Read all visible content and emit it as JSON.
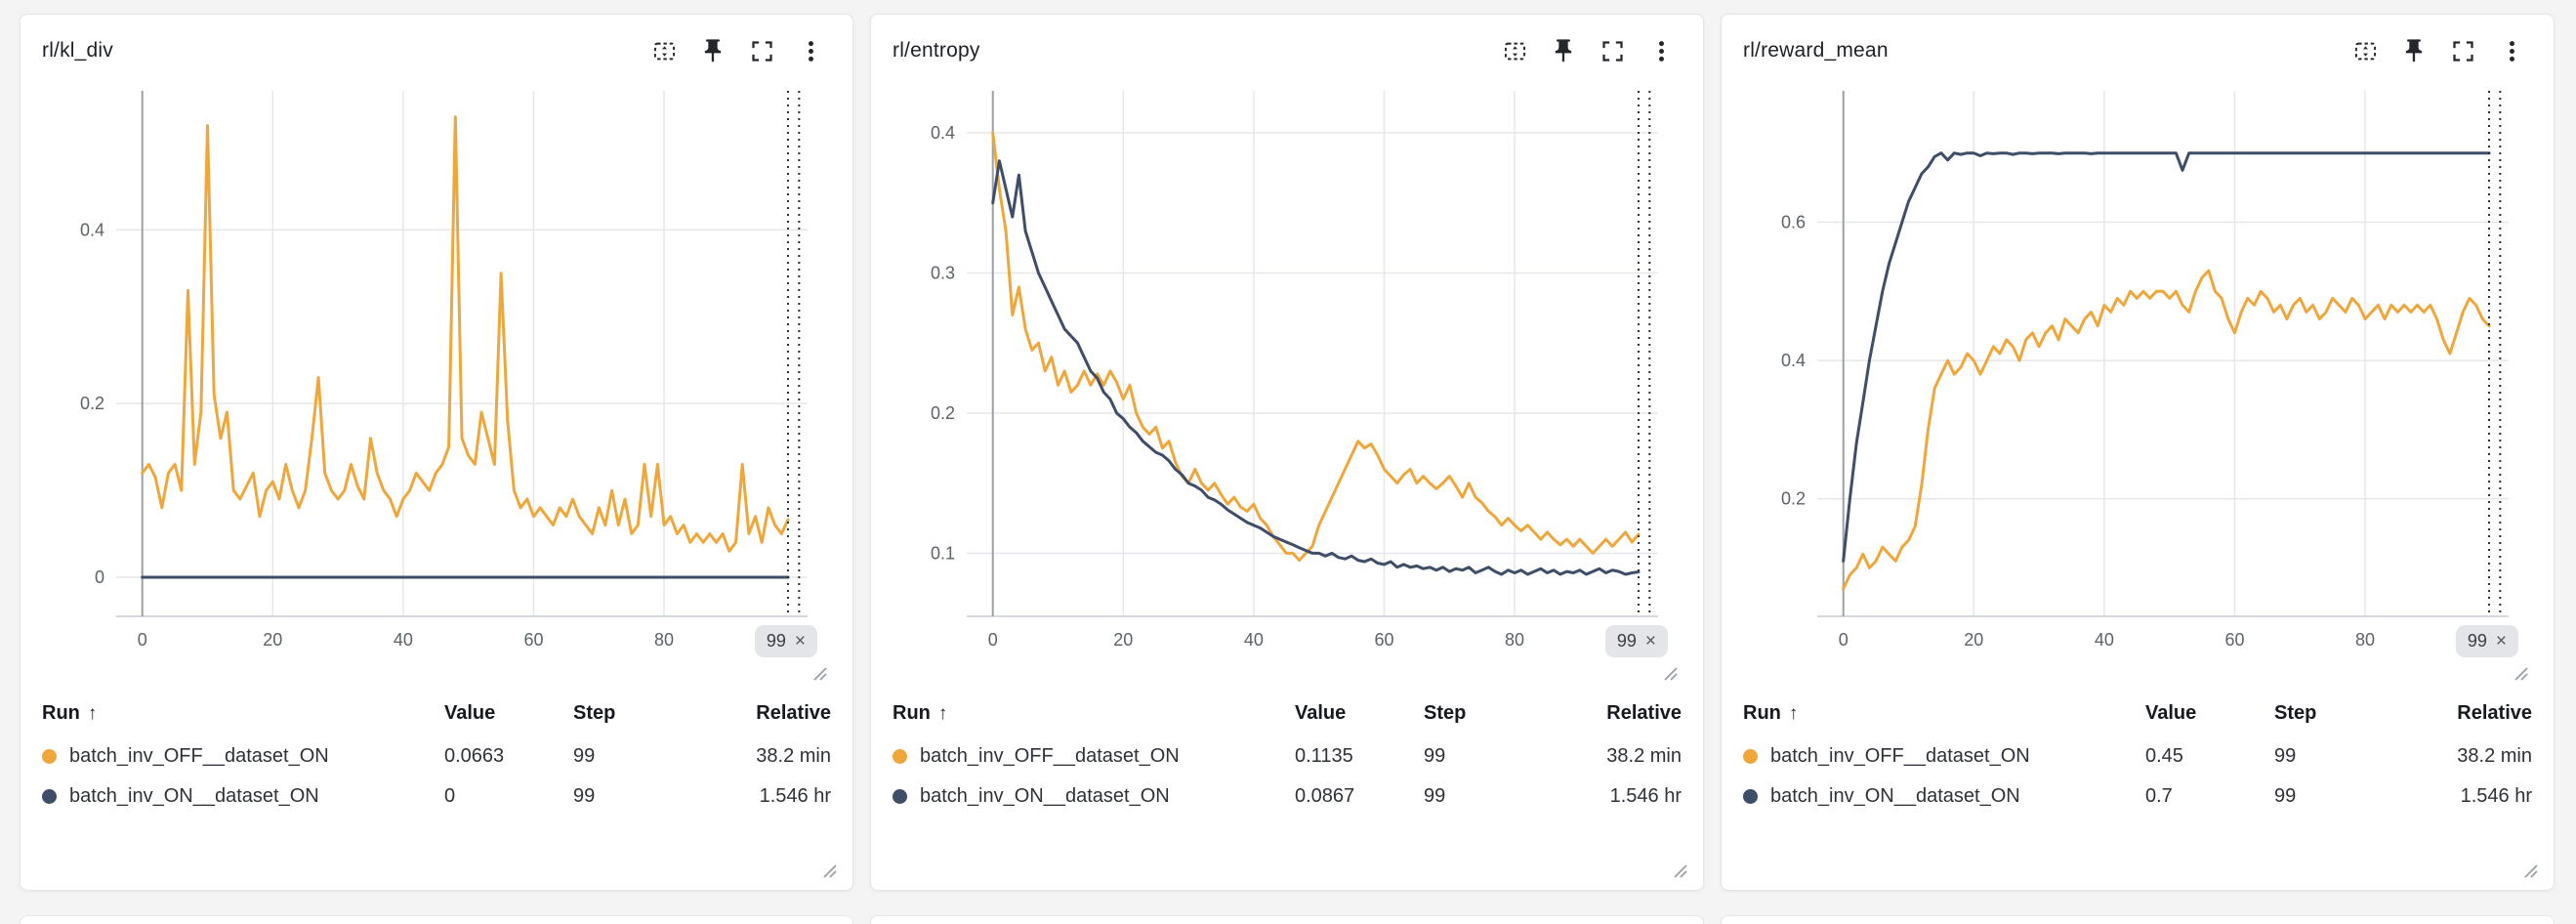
{
  "app": {
    "background": "#f4f4f5",
    "panel_background": "#ffffff"
  },
  "colors": {
    "run_off": "#EFA73C",
    "run_on": "#3E4D68",
    "grid": "#e5e7ea",
    "cursor": "#2b2e33"
  },
  "legend_headers": {
    "run": "Run",
    "sort": "↑",
    "value": "Value",
    "step": "Step",
    "relative": "Relative"
  },
  "panel_actions": [
    {
      "name": "zoom-region-icon"
    },
    {
      "name": "pin-icon"
    },
    {
      "name": "fullscreen-icon"
    },
    {
      "name": "kebab-menu-icon"
    }
  ],
  "panels": [
    {
      "title": "rl/kl_div",
      "badge": {
        "step": "99",
        "close": "×"
      },
      "legend": {
        "rows": [
          {
            "name": "batch_inv_OFF__dataset_ON",
            "value": "0.0663",
            "step": "99",
            "relative": "38.2 min",
            "color": "#EFA73C"
          },
          {
            "name": "batch_inv_ON__dataset_ON",
            "value": "0",
            "step": "99",
            "relative": "1.546 hr",
            "color": "#3E4D68"
          }
        ]
      }
    },
    {
      "title": "rl/entropy",
      "badge": {
        "step": "99",
        "close": "×"
      },
      "legend": {
        "rows": [
          {
            "name": "batch_inv_OFF__dataset_ON",
            "value": "0.1135",
            "step": "99",
            "relative": "38.2 min",
            "color": "#EFA73C"
          },
          {
            "name": "batch_inv_ON__dataset_ON",
            "value": "0.0867",
            "step": "99",
            "relative": "1.546 hr",
            "color": "#3E4D68"
          }
        ]
      }
    },
    {
      "title": "rl/reward_mean",
      "badge": {
        "step": "99",
        "close": "×"
      },
      "legend": {
        "rows": [
          {
            "name": "batch_inv_OFF__dataset_ON",
            "value": "0.45",
            "step": "99",
            "relative": "38.2 min",
            "color": "#EFA73C"
          },
          {
            "name": "batch_inv_ON__dataset_ON",
            "value": "0.7",
            "step": "99",
            "relative": "1.546 hr",
            "color": "#3E4D68"
          }
        ]
      }
    }
  ],
  "chart_data": [
    {
      "type": "line",
      "title": "rl/kl_div",
      "xlabel": "",
      "ylabel": "",
      "xlim": [
        -4,
        102
      ],
      "ylim": [
        -0.045,
        0.56
      ],
      "xticks": [
        0,
        20,
        40,
        60,
        80
      ],
      "yticks": [
        0,
        0.2,
        0.4
      ],
      "x_max_step": 99,
      "cursor_lines": [
        99,
        100.7
      ],
      "grid": true,
      "legend_position": "below",
      "series": [
        {
          "name": "batch_inv_OFF__dataset_ON",
          "color": "#EFA73C",
          "y": [
            0.12,
            0.13,
            0.115,
            0.08,
            0.12,
            0.13,
            0.1,
            0.33,
            0.13,
            0.19,
            0.52,
            0.21,
            0.16,
            0.19,
            0.1,
            0.09,
            0.105,
            0.12,
            0.07,
            0.1,
            0.11,
            0.09,
            0.13,
            0.1,
            0.08,
            0.1,
            0.16,
            0.23,
            0.12,
            0.1,
            0.09,
            0.1,
            0.13,
            0.105,
            0.09,
            0.16,
            0.12,
            0.1,
            0.09,
            0.07,
            0.09,
            0.1,
            0.12,
            0.11,
            0.1,
            0.12,
            0.13,
            0.15,
            0.53,
            0.16,
            0.14,
            0.13,
            0.19,
            0.16,
            0.13,
            0.35,
            0.18,
            0.1,
            0.08,
            0.09,
            0.07,
            0.08,
            0.07,
            0.06,
            0.08,
            0.07,
            0.09,
            0.07,
            0.06,
            0.05,
            0.08,
            0.06,
            0.1,
            0.06,
            0.09,
            0.05,
            0.06,
            0.13,
            0.07,
            0.13,
            0.06,
            0.07,
            0.05,
            0.06,
            0.04,
            0.05,
            0.04,
            0.05,
            0.04,
            0.05,
            0.03,
            0.04,
            0.13,
            0.05,
            0.07,
            0.04,
            0.08,
            0.06,
            0.05,
            0.0663
          ]
        },
        {
          "name": "batch_inv_ON__dataset_ON",
          "color": "#3E4D68",
          "y": [
            0,
            0
          ]
        }
      ]
    },
    {
      "type": "line",
      "title": "rl/entropy",
      "xlabel": "",
      "ylabel": "",
      "xlim": [
        -4,
        102
      ],
      "ylim": [
        0.055,
        0.43
      ],
      "xticks": [
        0,
        20,
        40,
        60,
        80
      ],
      "yticks": [
        0.1,
        0.2,
        0.3,
        0.4
      ],
      "x_max_step": 99,
      "cursor_lines": [
        99,
        100.7
      ],
      "grid": true,
      "legend_position": "below",
      "series": [
        {
          "name": "batch_inv_OFF__dataset_ON",
          "color": "#EFA73C",
          "y": [
            0.4,
            0.36,
            0.33,
            0.27,
            0.29,
            0.26,
            0.245,
            0.25,
            0.23,
            0.24,
            0.22,
            0.23,
            0.215,
            0.22,
            0.23,
            0.22,
            0.228,
            0.22,
            0.23,
            0.222,
            0.21,
            0.22,
            0.2,
            0.19,
            0.185,
            0.19,
            0.175,
            0.18,
            0.165,
            0.155,
            0.15,
            0.16,
            0.15,
            0.145,
            0.15,
            0.142,
            0.135,
            0.14,
            0.133,
            0.13,
            0.135,
            0.125,
            0.12,
            0.112,
            0.106,
            0.1,
            0.1,
            0.095,
            0.1,
            0.105,
            0.12,
            0.13,
            0.14,
            0.15,
            0.16,
            0.17,
            0.18,
            0.175,
            0.178,
            0.17,
            0.16,
            0.155,
            0.15,
            0.156,
            0.16,
            0.15,
            0.155,
            0.15,
            0.146,
            0.15,
            0.155,
            0.148,
            0.14,
            0.15,
            0.14,
            0.136,
            0.13,
            0.126,
            0.12,
            0.125,
            0.12,
            0.116,
            0.12,
            0.115,
            0.11,
            0.115,
            0.11,
            0.106,
            0.11,
            0.105,
            0.11,
            0.105,
            0.1,
            0.105,
            0.11,
            0.105,
            0.11,
            0.115,
            0.108,
            0.1135
          ]
        },
        {
          "name": "batch_inv_ON__dataset_ON",
          "color": "#3E4D68",
          "y": [
            0.35,
            0.38,
            0.36,
            0.34,
            0.37,
            0.33,
            0.315,
            0.3,
            0.29,
            0.28,
            0.27,
            0.26,
            0.255,
            0.25,
            0.24,
            0.23,
            0.225,
            0.215,
            0.21,
            0.2,
            0.196,
            0.19,
            0.186,
            0.18,
            0.176,
            0.172,
            0.17,
            0.166,
            0.16,
            0.156,
            0.15,
            0.148,
            0.145,
            0.14,
            0.138,
            0.135,
            0.131,
            0.128,
            0.125,
            0.122,
            0.12,
            0.118,
            0.115,
            0.112,
            0.11,
            0.108,
            0.106,
            0.104,
            0.102,
            0.1,
            0.1,
            0.098,
            0.1,
            0.097,
            0.096,
            0.098,
            0.095,
            0.094,
            0.096,
            0.093,
            0.092,
            0.094,
            0.09,
            0.092,
            0.09,
            0.091,
            0.089,
            0.09,
            0.088,
            0.09,
            0.087,
            0.089,
            0.088,
            0.09,
            0.086,
            0.088,
            0.09,
            0.087,
            0.085,
            0.088,
            0.086,
            0.088,
            0.085,
            0.087,
            0.089,
            0.086,
            0.088,
            0.085,
            0.087,
            0.086,
            0.088,
            0.085,
            0.087,
            0.089,
            0.086,
            0.088,
            0.087,
            0.085,
            0.086,
            0.0867
          ]
        }
      ]
    },
    {
      "type": "line",
      "title": "rl/reward_mean",
      "xlabel": "",
      "ylabel": "",
      "xlim": [
        -4,
        102
      ],
      "ylim": [
        0.03,
        0.79
      ],
      "xticks": [
        0,
        20,
        40,
        60,
        80
      ],
      "yticks": [
        0.2,
        0.4,
        0.6
      ],
      "x_max_step": 99,
      "cursor_lines": [
        99,
        100.7
      ],
      "grid": true,
      "legend_position": "below",
      "series": [
        {
          "name": "batch_inv_OFF__dataset_ON",
          "color": "#EFA73C",
          "y": [
            0.07,
            0.09,
            0.1,
            0.12,
            0.1,
            0.11,
            0.13,
            0.12,
            0.11,
            0.13,
            0.14,
            0.16,
            0.22,
            0.3,
            0.36,
            0.38,
            0.4,
            0.38,
            0.39,
            0.41,
            0.4,
            0.38,
            0.4,
            0.42,
            0.41,
            0.43,
            0.42,
            0.4,
            0.43,
            0.44,
            0.42,
            0.44,
            0.45,
            0.43,
            0.46,
            0.45,
            0.44,
            0.46,
            0.47,
            0.45,
            0.48,
            0.47,
            0.49,
            0.48,
            0.5,
            0.49,
            0.5,
            0.49,
            0.5,
            0.5,
            0.49,
            0.5,
            0.48,
            0.47,
            0.5,
            0.52,
            0.53,
            0.5,
            0.49,
            0.46,
            0.44,
            0.47,
            0.49,
            0.48,
            0.5,
            0.49,
            0.47,
            0.48,
            0.46,
            0.48,
            0.49,
            0.47,
            0.48,
            0.46,
            0.47,
            0.49,
            0.48,
            0.47,
            0.49,
            0.48,
            0.46,
            0.47,
            0.48,
            0.46,
            0.48,
            0.47,
            0.48,
            0.47,
            0.48,
            0.47,
            0.48,
            0.46,
            0.43,
            0.41,
            0.44,
            0.47,
            0.49,
            0.48,
            0.46,
            0.45
          ]
        },
        {
          "name": "batch_inv_ON__dataset_ON",
          "color": "#3E4D68",
          "y": [
            0.11,
            0.2,
            0.28,
            0.34,
            0.4,
            0.45,
            0.5,
            0.54,
            0.57,
            0.6,
            0.63,
            0.65,
            0.67,
            0.68,
            0.695,
            0.7,
            0.69,
            0.7,
            0.698,
            0.7,
            0.7,
            0.696,
            0.7,
            0.699,
            0.7,
            0.7,
            0.698,
            0.7,
            0.7,
            0.699,
            0.7,
            0.7,
            0.7,
            0.699,
            0.7,
            0.7,
            0.7,
            0.7,
            0.699,
            0.7,
            0.7,
            0.7,
            0.7,
            0.7,
            0.7,
            0.7,
            0.7,
            0.7,
            0.7,
            0.7,
            0.7,
            0.7,
            0.675,
            0.7,
            0.7,
            0.7,
            0.7,
            0.7,
            0.7,
            0.7,
            0.7,
            0.7,
            0.7,
            0.7,
            0.7,
            0.7,
            0.7,
            0.7,
            0.7,
            0.7,
            0.7,
            0.7,
            0.7,
            0.7,
            0.7,
            0.7,
            0.7,
            0.7,
            0.7,
            0.7,
            0.7,
            0.7,
            0.7,
            0.7,
            0.7,
            0.7,
            0.7,
            0.7,
            0.7,
            0.7,
            0.7,
            0.7,
            0.7,
            0.7,
            0.7,
            0.7,
            0.7,
            0.7,
            0.7,
            0.7
          ]
        }
      ]
    }
  ]
}
